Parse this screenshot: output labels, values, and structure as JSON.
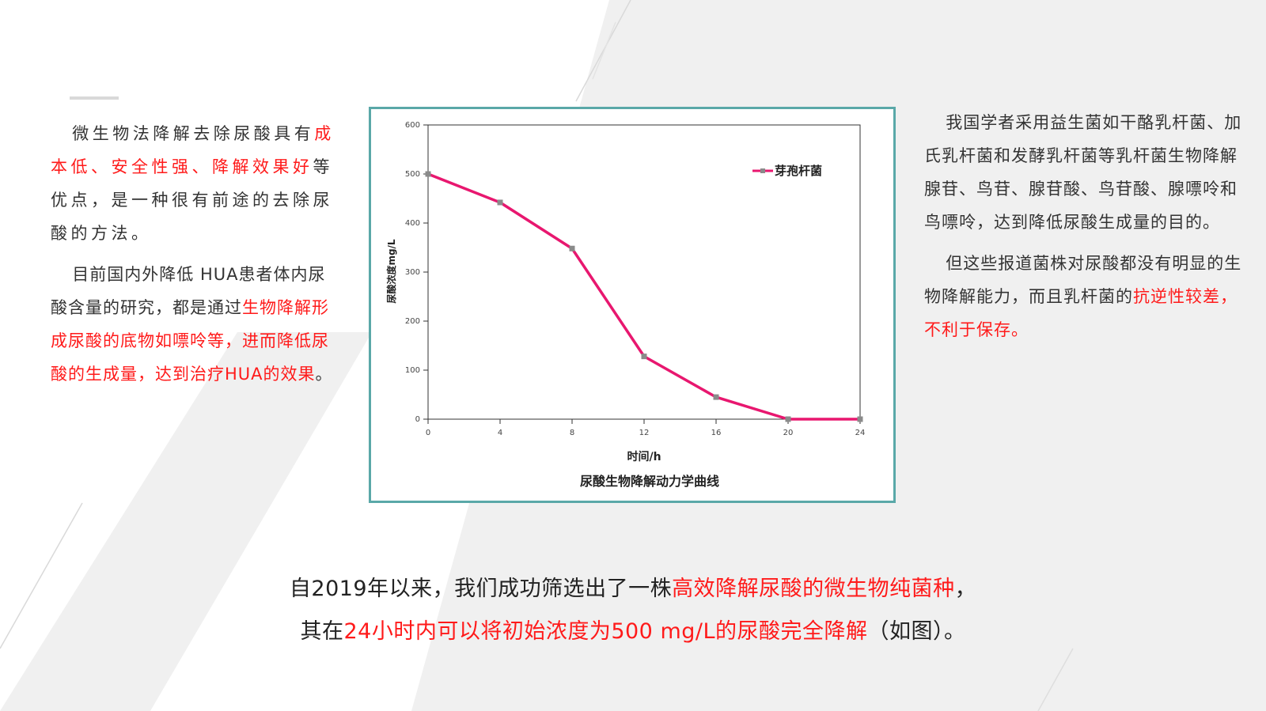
{
  "left_text": {
    "p1_a": "微生物法降解去除尿酸具有",
    "p1_red": "成本低、安全性强、降解效果好",
    "p1_b": "等优点，是一种很有前途的去除尿酸的方法。",
    "p2_a": "目前国内外降低 HUA患者体内尿酸含量的研究，都是通过",
    "p2_red": "生物降解形成尿酸的底物如嘌呤等，进而降低尿酸的生成量，达到治疗HUA的效果",
    "p2_b": "。"
  },
  "right_text": {
    "p1": "我国学者采用益生菌如干酪乳杆菌、加氏乳杆菌和发酵乳杆菌等乳杆菌生物降解腺苷、鸟苷、腺苷酸、鸟苷酸、腺嘌呤和鸟嘌呤，达到降低尿酸生成量的目的。",
    "p2_a": "但这些报道菌株对尿酸都没有明显的生物降解能力，而且乳杆菌的",
    "p2_red": "抗逆性较差，不利于保存。"
  },
  "bottom_text": {
    "l1_a": "自2019年以来，我们成功筛选出了一株",
    "l1_red": "高效降解尿酸的微生物纯菌种",
    "l1_b": "，",
    "l2_a": "其在",
    "l2_red": "24小时内可以将初始浓度为500 mg/L的尿酸完全降解",
    "l2_b": "（如图）。"
  },
  "colors": {
    "highlight": "#ff1a1a",
    "series": "#e8176f",
    "frame": "#5aa8a8"
  },
  "chart_data": {
    "type": "line",
    "title": "尿酸生物降解动力学曲线",
    "xlabel": "时间/h",
    "ylabel": "尿酸浓度mg/L",
    "x": [
      0,
      4,
      8,
      12,
      16,
      20,
      24
    ],
    "xlim": [
      0,
      24
    ],
    "ylim": [
      0,
      600
    ],
    "xticks": [
      "0",
      "4",
      "8",
      "12",
      "16",
      "20",
      "24"
    ],
    "yticks": [
      "0",
      "100",
      "200",
      "300",
      "400",
      "500",
      "600"
    ],
    "grid": false,
    "legend_position": "top-right",
    "series": [
      {
        "name": "芽孢杆菌",
        "values": [
          500,
          442,
          348,
          128,
          45,
          0,
          0
        ],
        "color": "#e8176f"
      }
    ]
  }
}
